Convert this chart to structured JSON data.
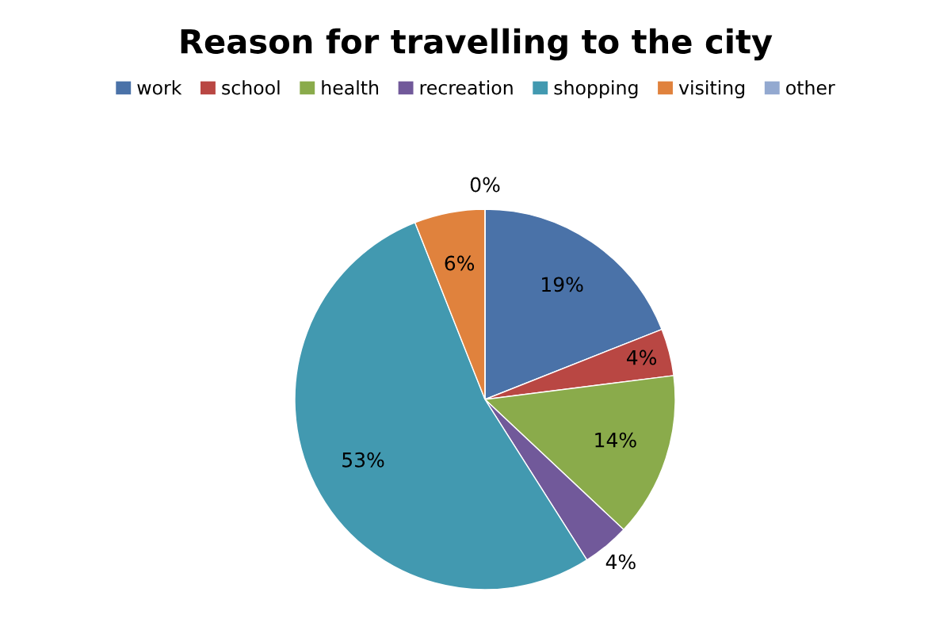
{
  "chart_data": {
    "type": "pie",
    "title": "Reason for travelling to the city",
    "categories": [
      "work",
      "school",
      "health",
      "recreation",
      "shopping",
      "visiting",
      "other"
    ],
    "values": [
      19,
      4,
      14,
      4,
      53,
      6,
      0
    ],
    "value_labels": [
      "19%",
      "4%",
      "14%",
      "4%",
      "53%",
      "6%",
      "0%"
    ],
    "colors": [
      "#4a72a8",
      "#b94743",
      "#8aab4b",
      "#71599a",
      "#4299b0",
      "#e0823d",
      "#93a9d0"
    ],
    "legend": "top"
  }
}
